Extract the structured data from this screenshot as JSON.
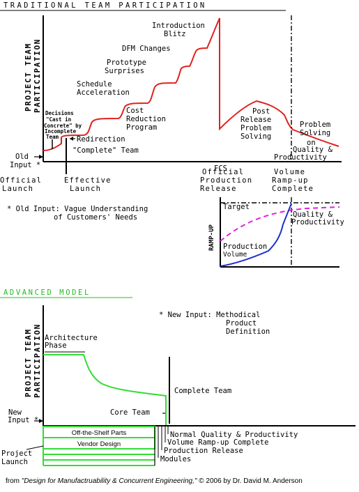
{
  "traditional": {
    "heading": "TRADITIONAL TEAM PARTICIPATION",
    "y_axis_line1": "PROJECT TEAM",
    "y_axis_line2": "PARTICIPATION",
    "labels": {
      "intro_blitz_1": "Introduction",
      "intro_blitz_2": "Blitz",
      "dfm": "DFM Changes",
      "proto_1": "Prototype",
      "proto_2": "Surprises",
      "sched_1": "Schedule",
      "sched_2": "Acceleration",
      "cost_1": "Cost",
      "cost_2": "Reduction",
      "cost_3": "Program",
      "decisions_1": "Decisions",
      "decisions_2": "\"Cast in",
      "decisions_3": "Concrete\" by",
      "decisions_4": "Incomplete",
      "decisions_5": "Team",
      "redirection": "Redirection",
      "complete_team": "\"Complete\" Team",
      "old_input_1": "Old",
      "old_input_2": "Input *",
      "post_1": "Post",
      "post_2": "Release",
      "post_3": "Problem",
      "post_4": "Solving",
      "ps_1": "Problem",
      "ps_2": "Solving",
      "ps_3": "on",
      "ps_4": "Quality &",
      "ps_5": "Productivity",
      "fcs": "FCS"
    },
    "timeline": {
      "official_launch_1": "Official",
      "official_launch_2": "Launch",
      "effective_launch_1": "Effective",
      "effective_launch_2": "Launch",
      "opr_1": "Official",
      "opr_2": "Production",
      "opr_3": "Release",
      "vrc_1": "Volume",
      "vrc_2": "Ramp-up",
      "vrc_3": "Complete"
    },
    "footnote_1": "* Old Input: Vague Understanding",
    "footnote_2": "of Customers' Needs",
    "inset": {
      "y_label": "RAMP-UP",
      "target": "Target",
      "qp_1": "Quality &",
      "qp_2": "Productivity",
      "pv_1": "Production",
      "pv_2": "Volume"
    }
  },
  "advanced": {
    "heading": "ADVANCED MODEL",
    "y_axis_line1": "PROJECT TEAM",
    "y_axis_line2": "PARTICIPATION",
    "new_input_note_1": "* New Input: Methodical",
    "new_input_note_2": "Product",
    "new_input_note_3": "Definition",
    "arch_1": "Architecture",
    "arch_2": "Phase",
    "complete_team": "Complete Team",
    "core_team": "Core Team",
    "new_input_1": "New",
    "new_input_2": "Input *",
    "bars": {
      "off_shelf": "Off-the-Shelf Parts",
      "vendor": "Vendor Design"
    },
    "project_launch_1": "Project",
    "project_launch_2": "Launch",
    "milestones": {
      "nqp": "Normal Quality & Productivity",
      "vrc": "Volume Ramp-up Complete",
      "pr": "Production Release",
      "modules": "Modules"
    }
  },
  "credit": {
    "prefix": "from ",
    "title": "\"Design for Manufactruability & Concurrent Engineering,\"",
    "suffix": " © 2006 by Dr. David M. Anderson"
  },
  "colors": {
    "red": "#e0201c",
    "green": "#33dd33",
    "blue": "#1f2fcc",
    "magenta": "#e020e0",
    "black": "#000000"
  }
}
